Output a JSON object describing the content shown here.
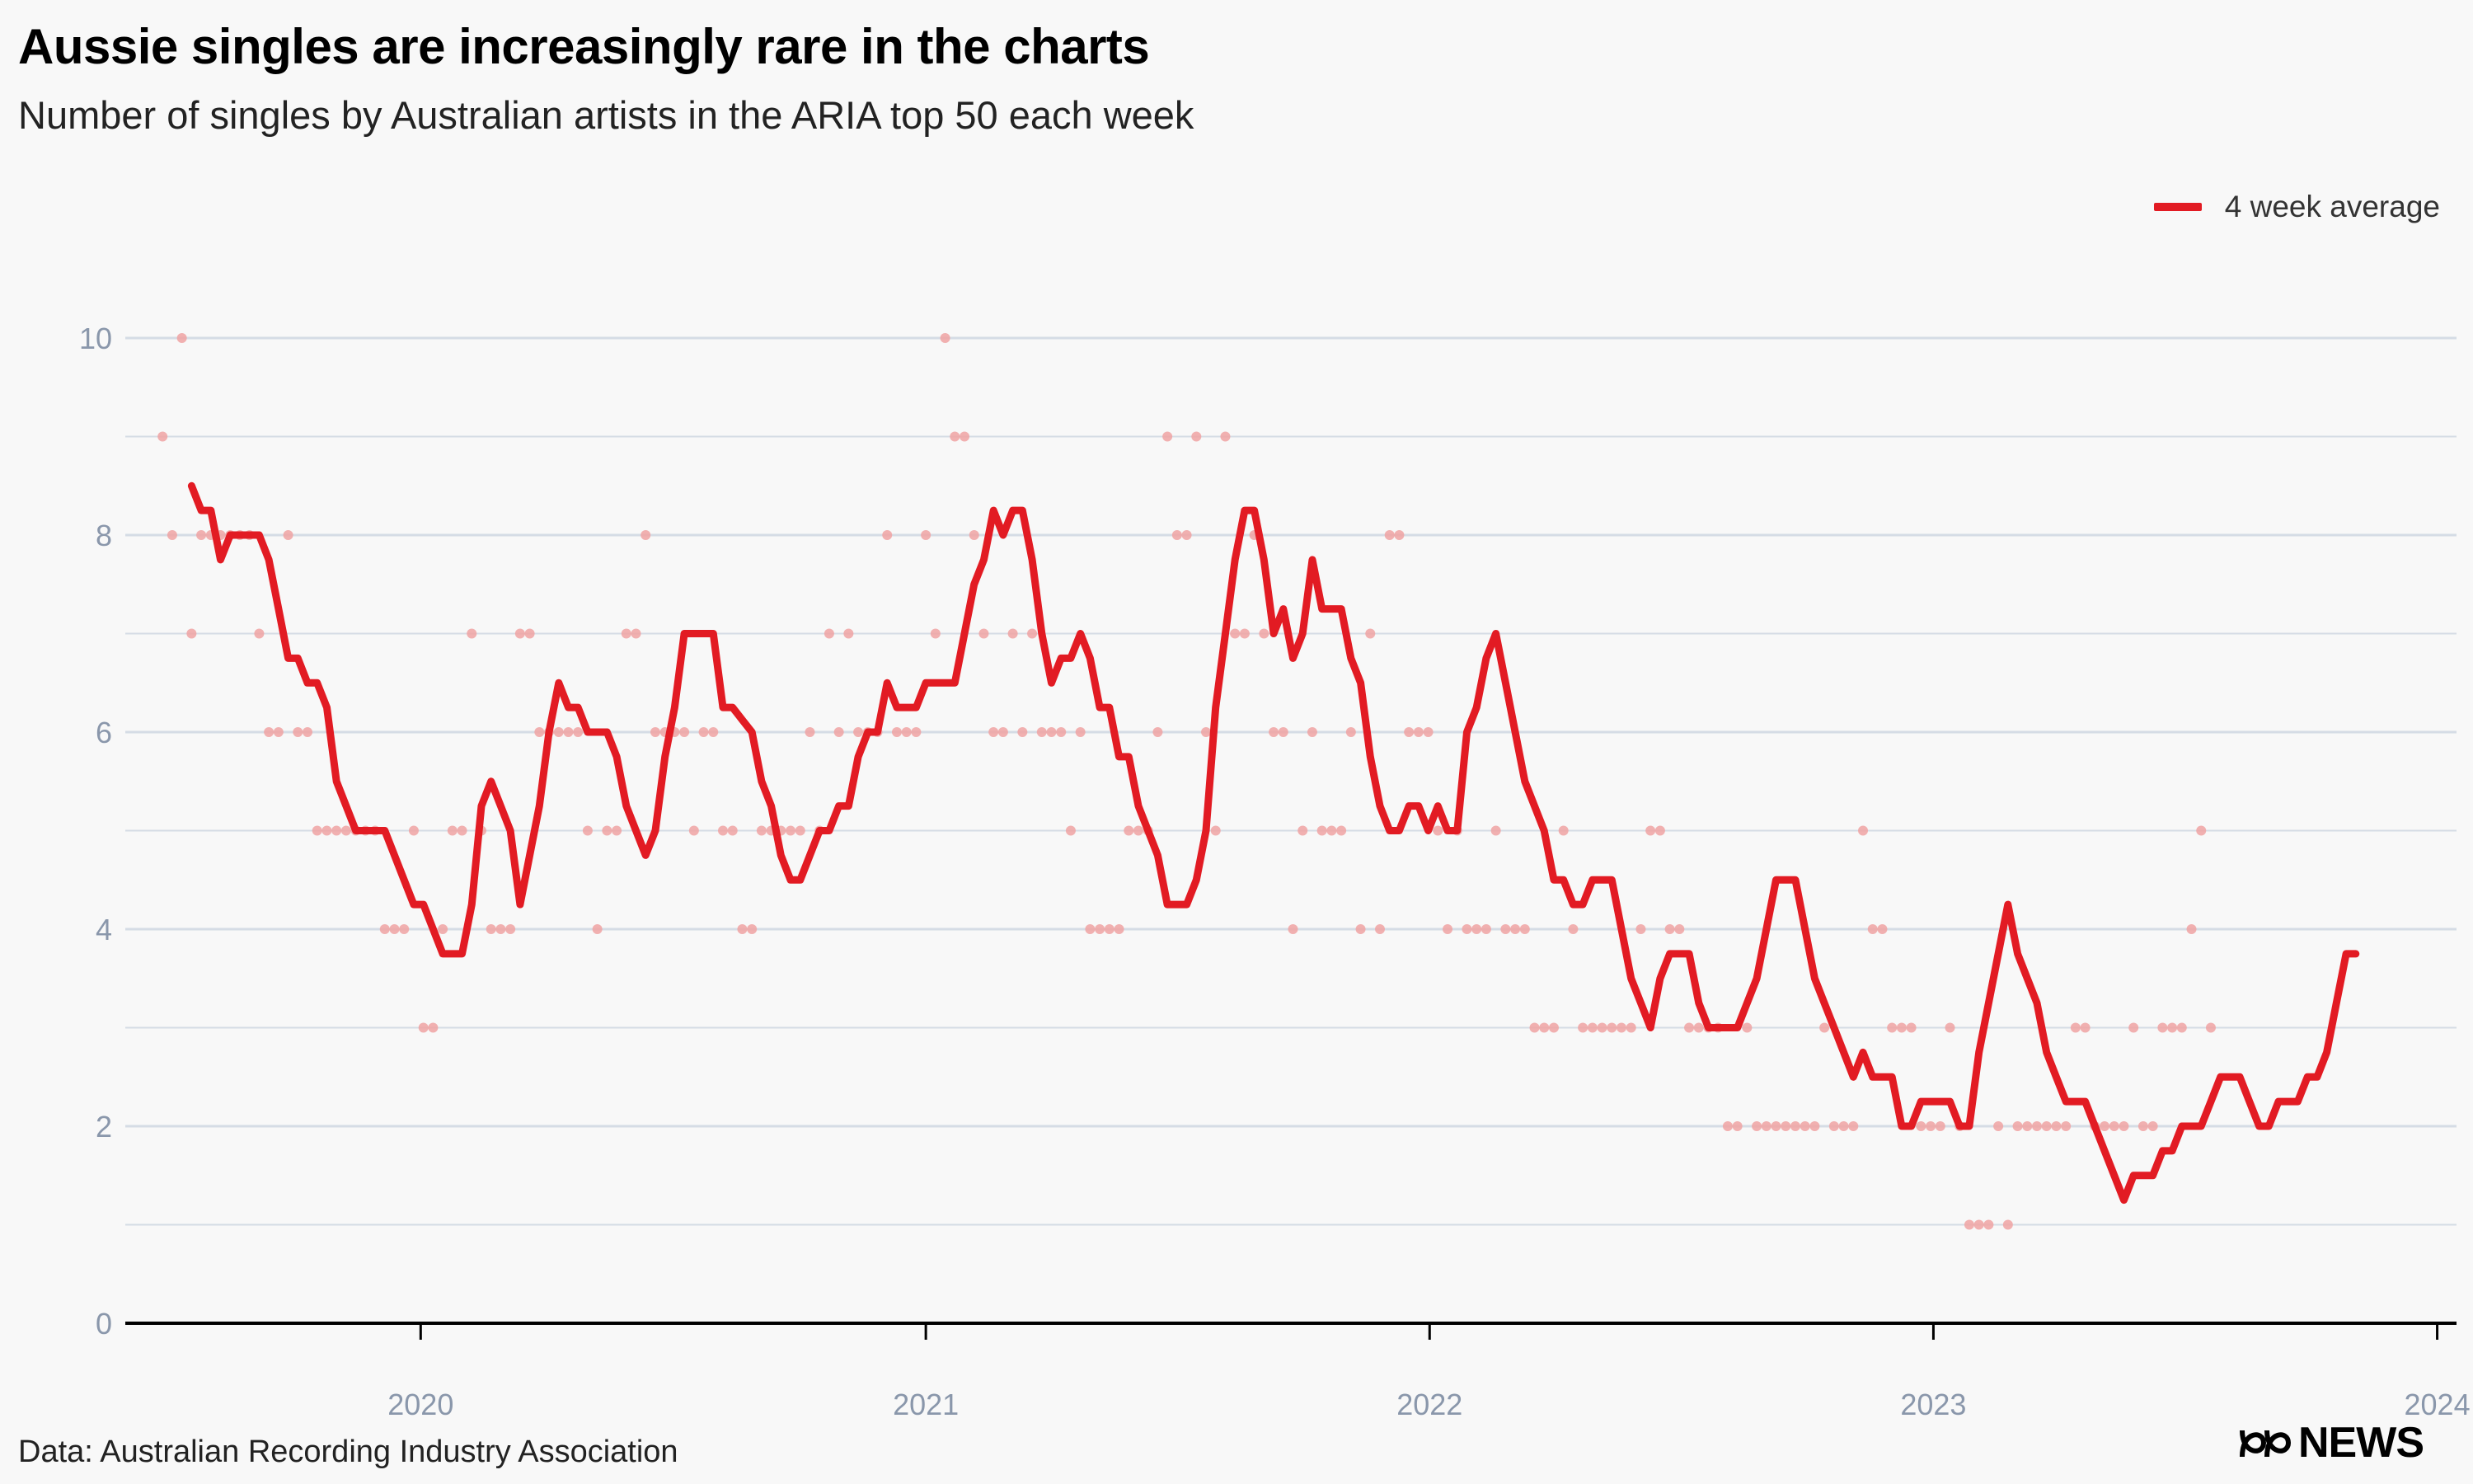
{
  "header": {
    "title": "Aussie singles are increasingly rare in the charts",
    "subtitle": "Number of singles by Australian artists in the ARIA top 50 each week"
  },
  "legend": {
    "label": "4 week average",
    "color": "#e21b23",
    "position": "top-right"
  },
  "footer": {
    "source": "Data: Australian Recording Industry Association",
    "brand": "NEWS",
    "brand_icon": "abc-logo-icon"
  },
  "colors": {
    "line": "#e21b23",
    "points": "#f0a3a3",
    "grid": "#d5dce5",
    "axis_text": "#8a97ab"
  },
  "chart_data": {
    "type": "line",
    "title": "Aussie singles are increasingly rare in the charts",
    "subtitle": "Number of singles by Australian artists in the ARIA top 50 each week",
    "xlabel": "",
    "ylabel": "",
    "x_tick_labels": [
      "2020",
      "2021",
      "2022",
      "2023",
      "2024"
    ],
    "y_tick_labels": [
      "0",
      "2",
      "4",
      "6",
      "8",
      "10"
    ],
    "xlim": [
      "2019-06-01",
      "2024-01-15"
    ],
    "ylim": [
      0,
      10
    ],
    "grid": true,
    "legend_position": "top-right",
    "start_week": "2019-06-28",
    "weekly_counts": [
      9,
      8,
      10,
      7,
      8,
      8,
      8,
      8,
      8,
      8,
      7,
      6,
      6,
      8,
      6,
      6,
      5,
      5,
      5,
      5,
      5,
      5,
      5,
      4,
      4,
      4,
      5,
      3,
      3,
      4,
      5,
      5,
      7,
      5,
      4,
      4,
      4,
      7,
      7,
      6,
      6,
      6,
      6,
      6,
      5,
      4,
      5,
      5,
      7,
      7,
      8,
      6,
      6,
      6,
      6,
      5,
      6,
      6,
      5,
      5,
      4,
      4,
      5,
      5,
      5,
      5,
      5,
      6,
      5,
      7,
      6,
      7,
      6,
      6,
      6,
      8,
      6,
      6,
      6,
      8,
      7,
      10,
      9,
      9,
      8,
      7,
      6,
      6,
      7,
      6,
      7,
      6,
      6,
      6,
      5,
      6,
      4,
      4,
      4,
      4,
      5,
      5,
      5,
      6,
      9,
      8,
      8,
      9,
      6,
      5,
      9,
      7,
      7,
      8,
      7,
      6,
      6,
      4,
      5,
      6,
      5,
      5,
      5,
      6,
      4,
      7,
      4,
      8,
      8,
      6,
      6,
      6,
      5,
      4,
      5,
      4,
      4,
      4,
      5,
      4,
      4,
      4,
      3,
      3,
      3,
      5,
      4,
      3,
      3,
      3,
      3,
      3,
      3,
      4,
      5,
      5,
      4,
      4,
      3,
      3,
      3,
      3,
      2,
      2,
      3,
      2,
      2,
      2,
      2,
      2,
      2,
      2,
      3,
      2,
      2,
      2,
      5,
      4,
      4,
      3,
      3,
      3,
      2,
      2,
      2,
      3,
      2,
      1,
      1,
      1,
      2,
      1,
      2,
      2,
      2,
      2,
      2,
      2,
      3,
      3,
      2,
      2,
      2,
      2,
      3,
      2,
      2,
      3,
      3,
      3,
      4,
      5,
      3
    ],
    "series": [
      {
        "name": "4 week average",
        "values": [
          8.5,
          8.25,
          8.25,
          7.75,
          8,
          8,
          8,
          8,
          7.75,
          7.25,
          6.75,
          6.75,
          6.5,
          6.5,
          6.25,
          5.5,
          5.25,
          5,
          5,
          5,
          5,
          4.75,
          4.5,
          4.25,
          4.25,
          4,
          3.75,
          3.75,
          3.75,
          4.25,
          5.25,
          5.5,
          5.25,
          5,
          4.25,
          4.75,
          5.25,
          6,
          6.5,
          6.25,
          6.25,
          6,
          6,
          6,
          5.75,
          5.25,
          5,
          4.75,
          5,
          5.75,
          6.25,
          7,
          7,
          7,
          7,
          6.25,
          6.25,
          6.125,
          6,
          5.5,
          5.25,
          4.75,
          4.5,
          4.5,
          4.75,
          5,
          5,
          5.25,
          5.25,
          5.75,
          6,
          6,
          6.5,
          6.25,
          6.25,
          6.25,
          6.5,
          6.5,
          6.5,
          6.5,
          7,
          7.5,
          7.75,
          8.25,
          8,
          8.25,
          8.25,
          7.75,
          7,
          6.5,
          6.75,
          6.75,
          7,
          6.75,
          6.25,
          6.25,
          5.75,
          5.75,
          5.25,
          5,
          4.75,
          4.25,
          4.25,
          4.25,
          4.5,
          5,
          6.25,
          7,
          7.75,
          8.25,
          8.25,
          7.75,
          7,
          7.25,
          6.75,
          7,
          7.75,
          7.25,
          7.25,
          7.25,
          6.75,
          6.5,
          5.75,
          5.25,
          5,
          5,
          5.25,
          5.25,
          5,
          5.25,
          5,
          5,
          6,
          6.25,
          6.75,
          7,
          6.5,
          6,
          5.5,
          5.25,
          5,
          4.5,
          4.5,
          4.25,
          4.25,
          4.5,
          4.5,
          4.5,
          4,
          3.5,
          3.25,
          3,
          3.5,
          3.75,
          3.75,
          3.75,
          3.25,
          3,
          3,
          3,
          3,
          3.25,
          3.5,
          4,
          4.5,
          4.5,
          4.5,
          4,
          3.5,
          3.25,
          3,
          2.75,
          2.5,
          2.75,
          2.5,
          2.5,
          2.5,
          2,
          2,
          2.25,
          2.25,
          2.25,
          2.25,
          2,
          2,
          2.75,
          3.25,
          3.75,
          4.25,
          3.75,
          3.5,
          3.25,
          2.75,
          2.5,
          2.25,
          2.25,
          2.25,
          2,
          1.75,
          1.5,
          1.25,
          1.5,
          1.5,
          1.5,
          1.75,
          1.75,
          2,
          2,
          2,
          2.25,
          2.5,
          2.5,
          2.5,
          2.25,
          2,
          2,
          2.25,
          2.25,
          2.25,
          2.5,
          2.5,
          2.75,
          3.25,
          3.75,
          3.75
        ]
      }
    ]
  }
}
